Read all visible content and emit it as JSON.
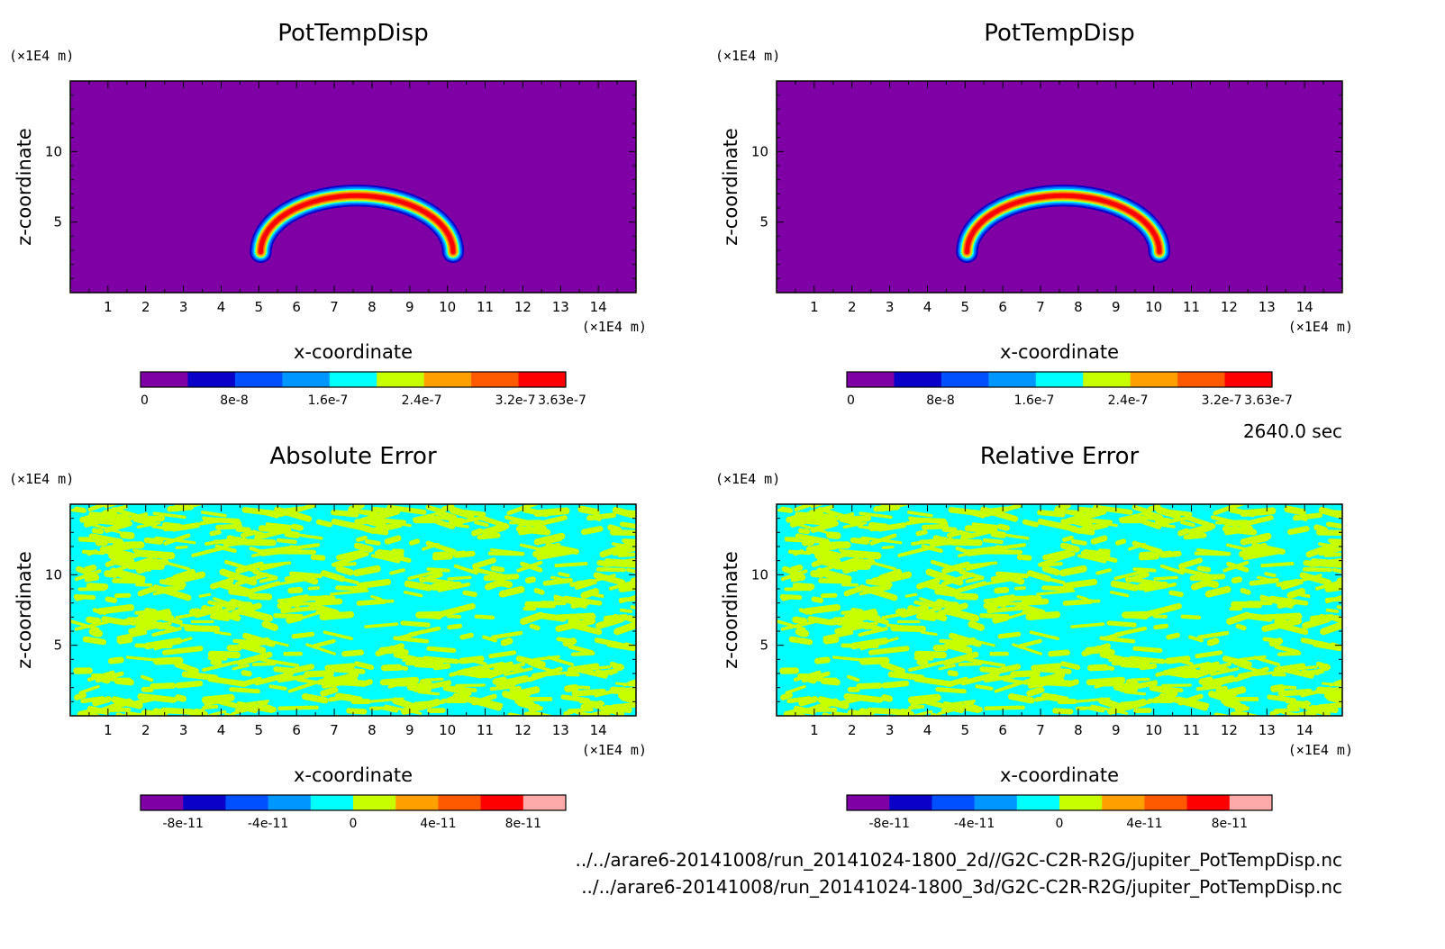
{
  "chart_data": [
    {
      "type": "heatmap",
      "title": "PotTempDisp",
      "xlabel": "x-coordinate",
      "ylabel": "z-coordinate",
      "x_unit": "(×1E4 m)",
      "y_unit": "(×1E4 m)",
      "xlim": [
        0,
        15
      ],
      "ylim": [
        0,
        15
      ],
      "x_ticks": [
        "1",
        "2",
        "3",
        "4",
        "5",
        "6",
        "7",
        "8",
        "9",
        "10",
        "11",
        "12",
        "13",
        "14"
      ],
      "y_ticks": [
        "5",
        "10"
      ],
      "field": "arc",
      "feature": {
        "center_x": 7.6,
        "center_z": 3.2,
        "radius_x": 2.55,
        "radius_z": 4.0,
        "thickness": 0.6
      },
      "colorbar": {
        "colors": [
          "#7f00a5",
          "#0a00c8",
          "#0050ff",
          "#0096ff",
          "#00ffff",
          "#c8ff00",
          "#ffa000",
          "#ff5a00",
          "#ff0000"
        ],
        "tick_labels": [
          "0",
          "8e-8",
          "1.6e-7",
          "2.4e-7",
          "3.2e-7",
          "3.63e-7"
        ],
        "tick_values": [
          0,
          8e-08,
          1.6e-07,
          2.4e-07,
          3.2e-07,
          3.63e-07
        ],
        "range": [
          0,
          3.63e-07
        ]
      }
    },
    {
      "type": "heatmap",
      "title": "PotTempDisp",
      "xlabel": "x-coordinate",
      "ylabel": "z-coordinate",
      "x_unit": "(×1E4 m)",
      "y_unit": "(×1E4 m)",
      "xlim": [
        0,
        15
      ],
      "ylim": [
        0,
        15
      ],
      "x_ticks": [
        "1",
        "2",
        "3",
        "4",
        "5",
        "6",
        "7",
        "8",
        "9",
        "10",
        "11",
        "12",
        "13",
        "14"
      ],
      "y_ticks": [
        "5",
        "10"
      ],
      "field": "arc",
      "feature": {
        "center_x": 7.6,
        "center_z": 3.2,
        "radius_x": 2.55,
        "radius_z": 4.0,
        "thickness": 0.6
      },
      "colorbar": {
        "colors": [
          "#7f00a5",
          "#0a00c8",
          "#0050ff",
          "#0096ff",
          "#00ffff",
          "#c8ff00",
          "#ffa000",
          "#ff5a00",
          "#ff0000"
        ],
        "tick_labels": [
          "0",
          "8e-8",
          "1.6e-7",
          "2.4e-7",
          "3.2e-7",
          "3.63e-7"
        ],
        "tick_values": [
          0,
          8e-08,
          1.6e-07,
          2.4e-07,
          3.2e-07,
          3.63e-07
        ],
        "range": [
          0,
          3.63e-07
        ]
      }
    },
    {
      "type": "heatmap",
      "title": "Absolute Error",
      "xlabel": "x-coordinate",
      "ylabel": "z-coordinate",
      "x_unit": "(×1E4 m)",
      "y_unit": "(×1E4 m)",
      "xlim": [
        0,
        15
      ],
      "ylim": [
        0,
        15
      ],
      "x_ticks": [
        "1",
        "2",
        "3",
        "4",
        "5",
        "6",
        "7",
        "8",
        "9",
        "10",
        "11",
        "12",
        "13",
        "14"
      ],
      "y_ticks": [
        "5",
        "10"
      ],
      "field": "noise",
      "colorbar": {
        "colors": [
          "#7f00a5",
          "#0a00c8",
          "#0050ff",
          "#0096ff",
          "#00ffff",
          "#c8ff00",
          "#ffa000",
          "#ff5a00",
          "#ff0000",
          "#ffaaaa"
        ],
        "tick_labels": [
          "-8e-11",
          "-4e-11",
          "0",
          "4e-11",
          "8e-11"
        ],
        "tick_values": [
          -8e-11,
          -4e-11,
          0,
          4e-11,
          8e-11
        ],
        "range": [
          -1e-10,
          1e-10
        ]
      }
    },
    {
      "type": "heatmap",
      "title": "Relative Error",
      "xlabel": "x-coordinate",
      "ylabel": "z-coordinate",
      "x_unit": "(×1E4 m)",
      "y_unit": "(×1E4 m)",
      "xlim": [
        0,
        15
      ],
      "ylim": [
        0,
        15
      ],
      "x_ticks": [
        "1",
        "2",
        "3",
        "4",
        "5",
        "6",
        "7",
        "8",
        "9",
        "10",
        "11",
        "12",
        "13",
        "14"
      ],
      "y_ticks": [
        "5",
        "10"
      ],
      "field": "noise",
      "colorbar": {
        "colors": [
          "#7f00a5",
          "#0a00c8",
          "#0050ff",
          "#0096ff",
          "#00ffff",
          "#c8ff00",
          "#ffa000",
          "#ff5a00",
          "#ff0000",
          "#ffaaaa"
        ],
        "tick_labels": [
          "-8e-11",
          "-4e-11",
          "0",
          "4e-11",
          "8e-11"
        ],
        "tick_values": [
          -8e-11,
          -4e-11,
          0,
          4e-11,
          8e-11
        ],
        "range": [
          -1e-10,
          1e-10
        ]
      }
    }
  ],
  "time_label": "2640.0 sec",
  "footer": {
    "file1": "../../arare6-20141008/run_20141024-1800_2d//G2C-C2R-R2G/jupiter_PotTempDisp.nc",
    "file2": "../../arare6-20141008/run_20141024-1800_3d/G2C-C2R-R2G/jupiter_PotTempDisp.nc"
  },
  "colors": {
    "noise_a": "#c8ff00",
    "noise_b": "#00ffff"
  }
}
